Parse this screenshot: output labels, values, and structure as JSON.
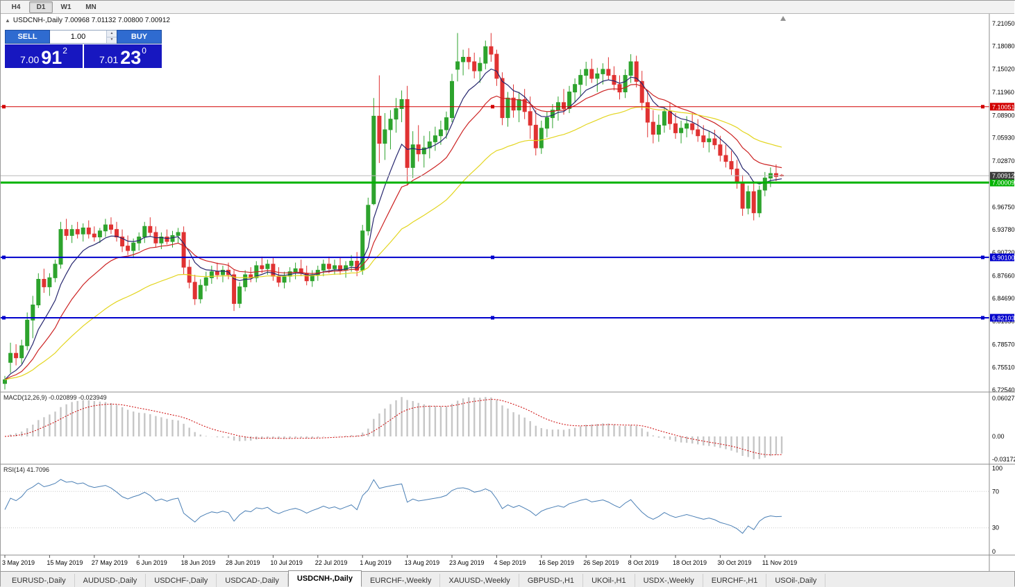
{
  "header": {
    "symbol_ohlc": "USDCNH-,Daily  7.00968 7.01132 7.00800 7.00912"
  },
  "toolbar": {
    "timeframes": [
      {
        "label": "H4",
        "active": false
      },
      {
        "label": "D1",
        "active": true
      },
      {
        "label": "W1",
        "active": false
      },
      {
        "label": "MN",
        "active": false
      }
    ]
  },
  "trade": {
    "sell_label": "SELL",
    "buy_label": "BUY",
    "volume": "1.00",
    "sell_price": {
      "main": "7.00",
      "big": "91",
      "sup": "2"
    },
    "buy_price": {
      "main": "7.01",
      "big": "23",
      "sup": "0"
    }
  },
  "colors": {
    "trade_button_bg": "#2f6bd0",
    "trade_price_bg": "#1717c0"
  },
  "tabs": [
    {
      "label": "EURUSD-,Daily",
      "active": false
    },
    {
      "label": "AUDUSD-,Daily",
      "active": false
    },
    {
      "label": "USDCHF-,Daily",
      "active": false
    },
    {
      "label": "USDCAD-,Daily",
      "active": false
    },
    {
      "label": "USDCNH-,Daily",
      "active": true
    },
    {
      "label": "EURCHF-,Weekly",
      "active": false
    },
    {
      "label": "XAUUSD-,Weekly",
      "active": false
    },
    {
      "label": "GBPUSD-,H1",
      "active": false
    },
    {
      "label": "UKOil-,H1",
      "active": false
    },
    {
      "label": "USDX-,Weekly",
      "active": false
    },
    {
      "label": "EURCHF-,H1",
      "active": false
    },
    {
      "label": "USOil-,Daily",
      "active": false
    }
  ],
  "chart_data": {
    "type": "candlestick",
    "title": "USDCNH-,Daily",
    "ohlc_display": {
      "open": "7.00968",
      "high": "7.01132",
      "low": "7.00800",
      "close": "7.00912"
    },
    "x_axis": {
      "labels": [
        "3 May 2019",
        "15 May 2019",
        "27 May 2019",
        "6 Jun 2019",
        "18 Jun 2019",
        "28 Jun 2019",
        "10 Jul 2019",
        "22 Jul 2019",
        "1 Aug 2019",
        "13 Aug 2019",
        "23 Aug 2019",
        "4 Sep 2019",
        "16 Sep 2019",
        "26 Sep 2019",
        "8 Oct 2019",
        "18 Oct 2019",
        "30 Oct 2019",
        "11 Nov 2019"
      ],
      "label_indices": [
        0,
        8,
        16,
        24,
        32,
        40,
        48,
        56,
        64,
        72,
        80,
        88,
        96,
        104,
        112,
        120,
        128,
        136
      ]
    },
    "y_axis": {
      "ticks": [
        "7.21050",
        "7.18080",
        "7.15020",
        "7.11960",
        "7.08900",
        "7.05930",
        "7.02870",
        "6.99810",
        "6.96750",
        "6.93780",
        "6.90720",
        "6.87660",
        "6.84690",
        "6.81630",
        "6.78570",
        "6.75510",
        "6.72540"
      ],
      "top_price": 7.2234,
      "bottom_price": 6.7227
    },
    "candles": [
      [
        6.734,
        6.744,
        6.726,
        6.739
      ],
      [
        6.762,
        6.788,
        6.748,
        6.774
      ],
      [
        6.774,
        6.786,
        6.758,
        6.768
      ],
      [
        6.768,
        6.792,
        6.76,
        6.784
      ],
      [
        6.784,
        6.828,
        6.778,
        6.818
      ],
      [
        6.818,
        6.85,
        6.794,
        6.838
      ],
      [
        6.838,
        6.88,
        6.834,
        6.872
      ],
      [
        6.872,
        6.886,
        6.854,
        6.862
      ],
      [
        6.862,
        6.88,
        6.85,
        6.874
      ],
      [
        6.874,
        6.898,
        6.868,
        6.892
      ],
      [
        6.892,
        6.948,
        6.886,
        6.938
      ],
      [
        6.938,
        6.952,
        6.924,
        6.93
      ],
      [
        6.93,
        6.944,
        6.92,
        6.938
      ],
      [
        6.938,
        6.948,
        6.926,
        6.932
      ],
      [
        6.932,
        6.946,
        6.922,
        6.94
      ],
      [
        6.94,
        6.95,
        6.926,
        6.932
      ],
      [
        6.932,
        6.942,
        6.922,
        6.928
      ],
      [
        6.928,
        6.94,
        6.92,
        6.936
      ],
      [
        6.936,
        6.952,
        6.928,
        6.944
      ],
      [
        6.944,
        6.954,
        6.932,
        6.938
      ],
      [
        6.938,
        6.948,
        6.922,
        6.928
      ],
      [
        6.928,
        6.938,
        6.908,
        6.916
      ],
      [
        6.916,
        6.93,
        6.904,
        6.91
      ],
      [
        6.91,
        6.926,
        6.9,
        6.92
      ],
      [
        6.92,
        6.934,
        6.91,
        6.928
      ],
      [
        6.928,
        6.948,
        6.92,
        6.942
      ],
      [
        6.942,
        6.954,
        6.928,
        6.934
      ],
      [
        6.934,
        6.942,
        6.914,
        6.92
      ],
      [
        6.92,
        6.934,
        6.912,
        6.928
      ],
      [
        6.928,
        6.938,
        6.918,
        6.922
      ],
      [
        6.922,
        6.936,
        6.914,
        6.93
      ],
      [
        6.93,
        6.94,
        6.92,
        6.934
      ],
      [
        6.934,
        6.942,
        6.878,
        6.888
      ],
      [
        6.888,
        6.898,
        6.86,
        6.868
      ],
      [
        6.868,
        6.878,
        6.838,
        6.846
      ],
      [
        6.846,
        6.872,
        6.84,
        6.864
      ],
      [
        6.864,
        6.882,
        6.856,
        6.874
      ],
      [
        6.874,
        6.89,
        6.866,
        6.882
      ],
      [
        6.882,
        6.894,
        6.872,
        6.878
      ],
      [
        6.878,
        6.89,
        6.868,
        6.884
      ],
      [
        6.884,
        6.894,
        6.872,
        6.878
      ],
      [
        6.878,
        6.884,
        6.83,
        6.84
      ],
      [
        6.84,
        6.868,
        6.834,
        6.862
      ],
      [
        6.862,
        6.884,
        6.856,
        6.878
      ],
      [
        6.878,
        6.888,
        6.868,
        6.874
      ],
      [
        6.874,
        6.896,
        6.868,
        6.89
      ],
      [
        6.89,
        6.902,
        6.88,
        6.886
      ],
      [
        6.886,
        6.898,
        6.878,
        6.892
      ],
      [
        6.892,
        6.9,
        6.87,
        6.876
      ],
      [
        6.876,
        6.888,
        6.862,
        6.868
      ],
      [
        6.868,
        6.882,
        6.86,
        6.876
      ],
      [
        6.876,
        6.888,
        6.868,
        6.882
      ],
      [
        6.882,
        6.894,
        6.872,
        6.886
      ],
      [
        6.886,
        6.898,
        6.876,
        6.88
      ],
      [
        6.88,
        6.89,
        6.864,
        6.87
      ],
      [
        6.87,
        6.884,
        6.862,
        6.878
      ],
      [
        6.878,
        6.89,
        6.87,
        6.884
      ],
      [
        6.884,
        6.898,
        6.876,
        6.892
      ],
      [
        6.892,
        6.902,
        6.88,
        6.886
      ],
      [
        6.886,
        6.898,
        6.878,
        6.89
      ],
      [
        6.89,
        6.9,
        6.878,
        6.884
      ],
      [
        6.884,
        6.896,
        6.874,
        6.89
      ],
      [
        6.89,
        6.904,
        6.882,
        6.896
      ],
      [
        6.896,
        6.908,
        6.876,
        6.884
      ],
      [
        6.884,
        6.944,
        6.878,
        6.936
      ],
      [
        6.936,
        6.98,
        6.93,
        6.97
      ],
      [
        6.972,
        7.112,
        6.97,
        7.088
      ],
      [
        7.088,
        7.142,
        7.026,
        7.052
      ],
      [
        7.052,
        7.092,
        7.03,
        7.07
      ],
      [
        7.07,
        7.096,
        7.044,
        7.084
      ],
      [
        7.084,
        7.112,
        7.066,
        7.098
      ],
      [
        7.098,
        7.122,
        7.08,
        7.11
      ],
      [
        7.11,
        7.128,
        6.996,
        7.02
      ],
      [
        7.02,
        7.068,
        7.006,
        7.05
      ],
      [
        7.05,
        7.076,
        7.028,
        7.038
      ],
      [
        7.038,
        7.062,
        7.02,
        7.046
      ],
      [
        7.046,
        7.068,
        7.032,
        7.054
      ],
      [
        7.054,
        7.074,
        7.042,
        7.062
      ],
      [
        7.062,
        7.082,
        7.05,
        7.07
      ],
      [
        7.07,
        7.094,
        7.058,
        7.086
      ],
      [
        7.086,
        7.144,
        7.08,
        7.134
      ],
      [
        7.15,
        7.198,
        7.134,
        7.16
      ],
      [
        7.16,
        7.176,
        7.142,
        7.166
      ],
      [
        7.166,
        7.178,
        7.15,
        7.16
      ],
      [
        7.16,
        7.172,
        7.138,
        7.148
      ],
      [
        7.148,
        7.166,
        7.132,
        7.158
      ],
      [
        7.158,
        7.188,
        7.15,
        7.18
      ],
      [
        7.18,
        7.198,
        7.16,
        7.17
      ],
      [
        7.17,
        7.176,
        7.128,
        7.138
      ],
      [
        7.138,
        7.146,
        7.076,
        7.086
      ],
      [
        7.086,
        7.12,
        7.074,
        7.112
      ],
      [
        7.112,
        7.13,
        7.086,
        7.096
      ],
      [
        7.096,
        7.12,
        7.08,
        7.11
      ],
      [
        7.11,
        7.124,
        7.084,
        7.094
      ],
      [
        7.094,
        7.114,
        7.058,
        7.076
      ],
      [
        7.076,
        7.096,
        7.036,
        7.046
      ],
      [
        7.046,
        7.082,
        7.038,
        7.072
      ],
      [
        7.072,
        7.094,
        7.06,
        7.086
      ],
      [
        7.086,
        7.104,
        7.072,
        7.096
      ],
      [
        7.096,
        7.114,
        7.082,
        7.106
      ],
      [
        7.106,
        7.124,
        7.09,
        7.098
      ],
      [
        7.098,
        7.128,
        7.092,
        7.12
      ],
      [
        7.12,
        7.138,
        7.106,
        7.13
      ],
      [
        7.13,
        7.15,
        7.114,
        7.142
      ],
      [
        7.142,
        7.16,
        7.128,
        7.15
      ],
      [
        7.15,
        7.164,
        7.132,
        7.138
      ],
      [
        7.138,
        7.152,
        7.12,
        7.144
      ],
      [
        7.144,
        7.158,
        7.13,
        7.15
      ],
      [
        7.15,
        7.166,
        7.136,
        7.142
      ],
      [
        7.142,
        7.154,
        7.122,
        7.13
      ],
      [
        7.13,
        7.142,
        7.11,
        7.12
      ],
      [
        7.12,
        7.15,
        7.112,
        7.142
      ],
      [
        7.142,
        7.17,
        7.132,
        7.16
      ],
      [
        7.16,
        7.168,
        7.126,
        7.134
      ],
      [
        7.134,
        7.148,
        7.096,
        7.106
      ],
      [
        7.106,
        7.122,
        7.06,
        7.08
      ],
      [
        7.08,
        7.096,
        7.052,
        7.064
      ],
      [
        7.064,
        7.09,
        7.054,
        7.076
      ],
      [
        7.076,
        7.1,
        7.066,
        7.094
      ],
      [
        7.094,
        7.106,
        7.07,
        7.078
      ],
      [
        7.078,
        7.092,
        7.058,
        7.066
      ],
      [
        7.066,
        7.082,
        7.052,
        7.072
      ],
      [
        7.072,
        7.088,
        7.06,
        7.078
      ],
      [
        7.078,
        7.092,
        7.064,
        7.07
      ],
      [
        7.07,
        7.084,
        7.054,
        7.062
      ],
      [
        7.062,
        7.076,
        7.046,
        7.054
      ],
      [
        7.054,
        7.068,
        7.04,
        7.058
      ],
      [
        7.058,
        7.07,
        7.044,
        7.05
      ],
      [
        7.05,
        7.062,
        7.028,
        7.036
      ],
      [
        7.036,
        7.05,
        7.02,
        7.028
      ],
      [
        7.028,
        7.042,
        7.01,
        7.018
      ],
      [
        7.018,
        7.03,
        6.992,
        7.0
      ],
      [
        7.0,
        7.01,
        6.956,
        6.966
      ],
      [
        6.966,
        6.996,
        6.958,
        6.988
      ],
      [
        6.988,
        7.002,
        6.95,
        6.96
      ],
      [
        6.96,
        6.996,
        6.954,
        6.99
      ],
      [
        6.99,
        7.014,
        6.982,
        7.006
      ],
      [
        7.006,
        7.02,
        6.994,
        7.012
      ],
      [
        7.012,
        7.024,
        7.002,
        7.008
      ],
      [
        7.00968,
        7.01132,
        7.008,
        7.00912
      ]
    ],
    "candle_colors": {
      "up": "#2da32d",
      "down": "#e03232"
    },
    "moving_averages": [
      {
        "period": 8,
        "color": "#26266e"
      },
      {
        "period": 17,
        "color": "#cc2222"
      },
      {
        "period": 40,
        "color": "#e3d51f"
      }
    ],
    "hlines": [
      {
        "value": 7.10051,
        "label": "7.10051",
        "color": "#d20000",
        "thickness": 1,
        "handles": true
      },
      {
        "value": 7.00009,
        "label": "7.00009",
        "color": "#00b300",
        "thickness": 3,
        "handles": false
      },
      {
        "value": 6.901,
        "label": "6.90100",
        "color": "#0000cc",
        "thickness": 2,
        "handles": true
      },
      {
        "value": 6.82103,
        "label": "6.82103",
        "color": "#0000cc",
        "thickness": 2,
        "handles": true
      }
    ],
    "current_price": {
      "value": 7.00912,
      "label": "7.00912",
      "line_color": "#b8b8b8",
      "tag_color": "#3c3c3c"
    },
    "macd": {
      "display": "MACD(12,26,9) -0.020899 -0.023949",
      "fast": 12,
      "slow": 26,
      "signal": 9,
      "scale_ticks": [
        "0.060273",
        "0.00",
        "-0.031725"
      ],
      "histogram_color": "#c6c6c6",
      "signal_color": "#cc0000"
    },
    "rsi": {
      "display": "RSI(14) 41.7096",
      "period": 14,
      "scale_ticks": [
        "100",
        "70",
        "30",
        "0"
      ],
      "levels": [
        70,
        30
      ],
      "line_color": "#4a7fb5"
    }
  }
}
